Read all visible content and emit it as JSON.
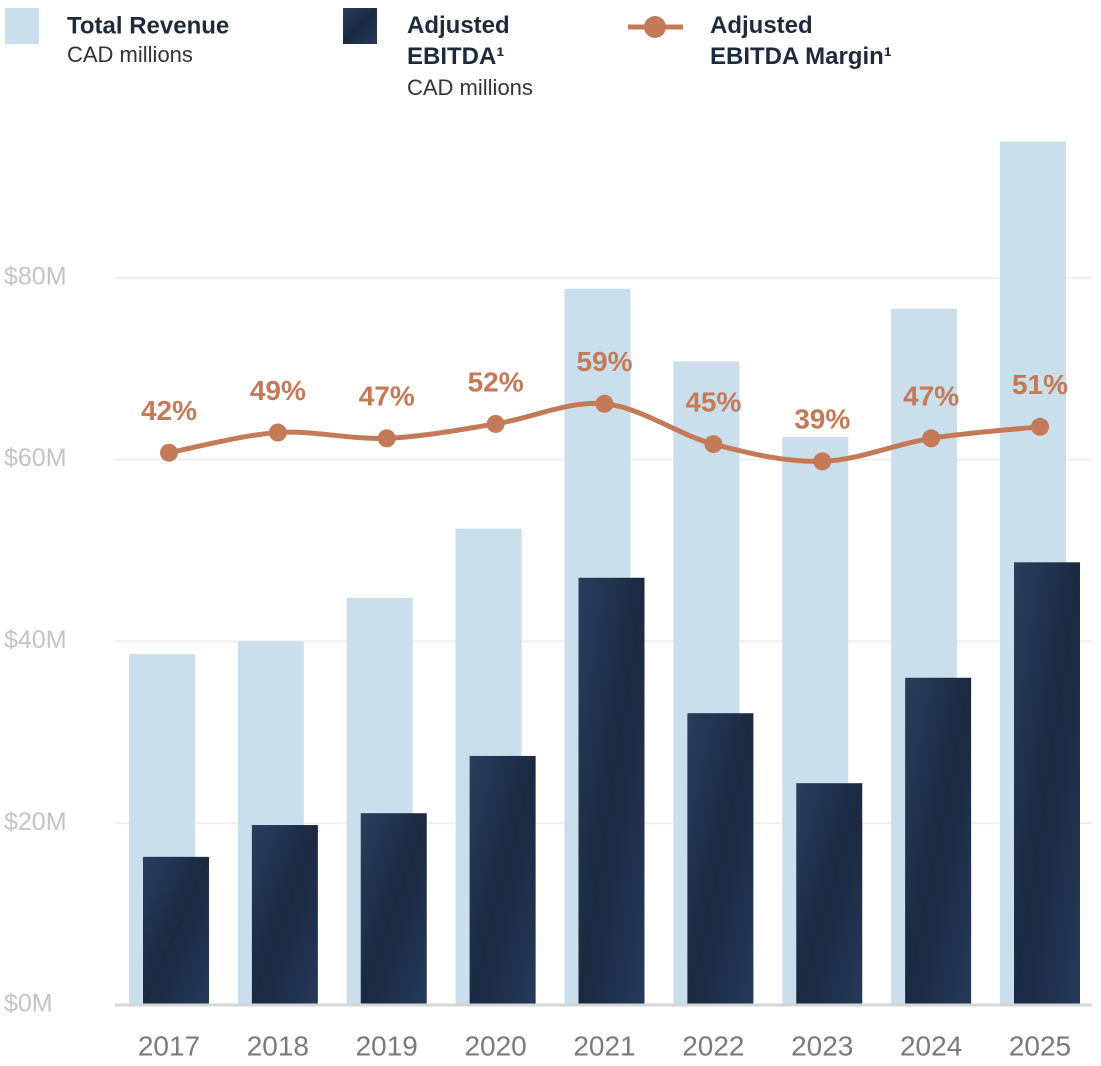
{
  "chart_data": {
    "type": "bar",
    "categories": [
      "2017",
      "2018",
      "2019",
      "2020",
      "2021",
      "2022",
      "2023",
      "2024",
      "2025"
    ],
    "series": [
      {
        "name": "Total Revenue",
        "unit": "CAD millions",
        "color": "#cadeeb",
        "values": [
          38.6,
          40.0,
          44.8,
          52.4,
          78.8,
          70.8,
          62.5,
          76.6,
          95.0
        ]
      },
      {
        "name": "Adjusted EBITDA¹",
        "unit": "CAD millions",
        "color": "#233654",
        "values": [
          16.3,
          19.8,
          21.1,
          27.4,
          47.0,
          32.1,
          24.4,
          36.0,
          48.7
        ]
      },
      {
        "name": "Adjusted EBITDA Margin¹",
        "type": "line",
        "axis": "y2",
        "color": "#c47a57",
        "values": [
          42,
          49,
          47,
          52,
          59,
          45,
          39,
          47,
          51
        ],
        "value_labels": [
          "42%",
          "49%",
          "47%",
          "52%",
          "59%",
          "45%",
          "39%",
          "47%",
          "51%"
        ]
      }
    ],
    "ylim": [
      0,
      100
    ],
    "yticks": [
      {
        "value": 0,
        "label": "$0M"
      },
      {
        "value": 20,
        "label": "$20M"
      },
      {
        "value": 40,
        "label": "$40M"
      },
      {
        "value": 60,
        "label": "$60M"
      },
      {
        "value": 80,
        "label": "$80M"
      }
    ],
    "y2lim": [
      -150,
      166
    ],
    "grid": true
  }
}
